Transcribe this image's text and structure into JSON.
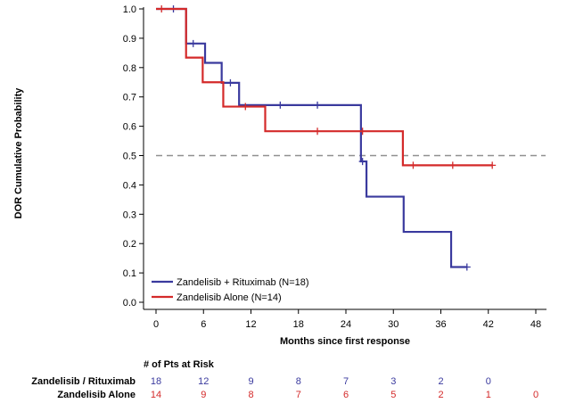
{
  "chart_data": {
    "type": "line",
    "subtype": "kaplan-meier",
    "ylabel": "DOR Cumulative Probability",
    "xlabel": "Months since first response",
    "xlim": [
      0,
      48
    ],
    "ylim": [
      0,
      1.0
    ],
    "xticks": [
      "0",
      "6",
      "12",
      "18",
      "24",
      "30",
      "36",
      "42",
      "48"
    ],
    "yticks": [
      "0.0",
      "0.1",
      "0.2",
      "0.3",
      "0.4",
      "0.5",
      "0.6",
      "0.7",
      "0.8",
      "0.9",
      "1.0"
    ],
    "reference_line": {
      "y": 0.5,
      "style": "dashed"
    },
    "legend": {
      "position": "bottom-left"
    },
    "series": [
      {
        "name": "Zandelisib + Rituximab (N=18)",
        "color": "#3a3a9e",
        "steps": [
          [
            0,
            1.0
          ],
          [
            3.8,
            0.882
          ],
          [
            6.2,
            0.816
          ],
          [
            8.3,
            0.748
          ],
          [
            10.5,
            0.672
          ],
          [
            25.9,
            0.48
          ],
          [
            26.6,
            0.36
          ],
          [
            31.3,
            0.24
          ],
          [
            37.3,
            0.12
          ],
          [
            39.3,
            0.12
          ]
        ],
        "censored": [
          [
            2.2,
            1.0
          ],
          [
            4.7,
            0.882
          ],
          [
            9.4,
            0.748
          ],
          [
            15.7,
            0.672
          ],
          [
            20.4,
            0.672
          ],
          [
            26.1,
            0.48
          ],
          [
            39.3,
            0.12
          ]
        ]
      },
      {
        "name": "Zandelisib Alone (N=14)",
        "color": "#d42a2a",
        "steps": [
          [
            0,
            1.0
          ],
          [
            3.8,
            0.834
          ],
          [
            5.9,
            0.75
          ],
          [
            8.5,
            0.667
          ],
          [
            13.8,
            0.583
          ],
          [
            31.2,
            0.467
          ],
          [
            42.5,
            0.467
          ]
        ],
        "censored": [
          [
            0.7,
            1.0
          ],
          [
            11.3,
            0.667
          ],
          [
            20.4,
            0.583
          ],
          [
            26.1,
            0.583
          ],
          [
            32.5,
            0.467
          ],
          [
            37.5,
            0.467
          ],
          [
            42.5,
            0.467
          ]
        ]
      }
    ],
    "at_risk": {
      "title": "# of Pts at Risk",
      "times": [
        0,
        6,
        12,
        18,
        24,
        30,
        36,
        42,
        48
      ],
      "rows": [
        {
          "label": "Zandelisib / Rituximab",
          "color": "#3a3a9e",
          "values": [
            "18",
            "12",
            "9",
            "8",
            "7",
            "3",
            "2",
            "0",
            ""
          ]
        },
        {
          "label": "Zandelisib Alone",
          "color": "#d42a2a",
          "values": [
            "14",
            "9",
            "8",
            "7",
            "6",
            "5",
            "2",
            "1",
            "0"
          ]
        }
      ]
    }
  }
}
